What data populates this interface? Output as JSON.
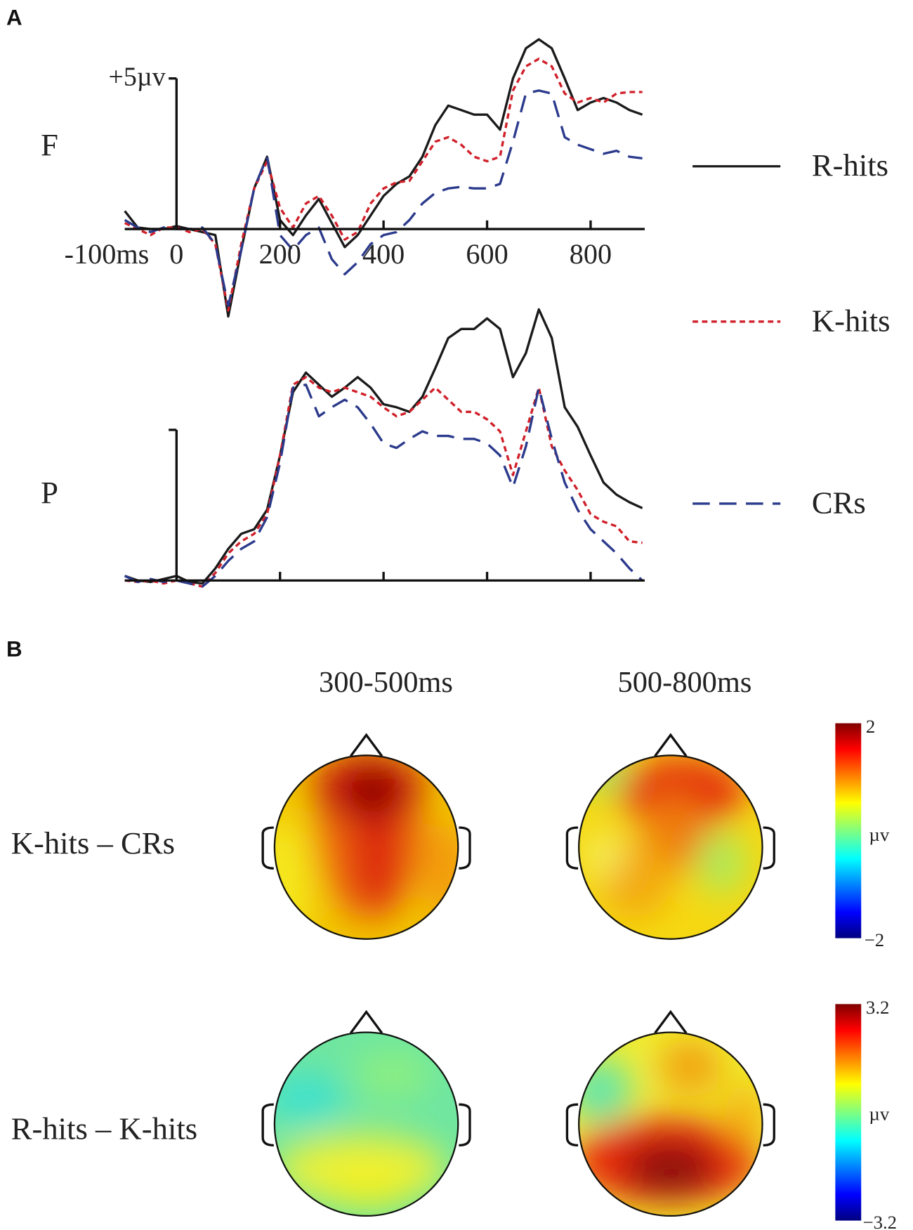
{
  "panel_labels": [
    "A",
    "B"
  ],
  "chart_data": [
    {
      "type": "line",
      "title": "F",
      "x": [
        -100,
        -75,
        -50,
        -25,
        0,
        25,
        50,
        75,
        100,
        125,
        150,
        175,
        200,
        225,
        250,
        275,
        300,
        325,
        350,
        375,
        400,
        425,
        450,
        475,
        500,
        525,
        550,
        575,
        600,
        625,
        650,
        675,
        700,
        725,
        750,
        775,
        800,
        825,
        850,
        875,
        900
      ],
      "xlim": [
        -100,
        900
      ],
      "xticks": [
        {
          "value": -100,
          "label": "-100ms"
        },
        0,
        200,
        400,
        600,
        800
      ],
      "ylim": [
        -4,
        7
      ],
      "yticks": [
        {
          "value": 5,
          "label": "+5µv"
        }
      ],
      "series": [
        {
          "name": "R-hits",
          "color": "#1a1a1a",
          "line_style": "solid",
          "values": [
            0.6,
            0.05,
            0,
            0,
            0.1,
            0,
            -0.1,
            -0.2,
            -2.9,
            -0.7,
            1.35,
            2.4,
            0.3,
            -0.2,
            0.45,
            1.0,
            0.2,
            -0.6,
            -0.2,
            0.45,
            1.1,
            1.5,
            1.75,
            2.4,
            3.45,
            4.1,
            3.95,
            3.8,
            3.8,
            3.3,
            5.0,
            6.0,
            6.3,
            6.0,
            5.0,
            3.95,
            4.2,
            4.35,
            4.2,
            3.95,
            3.8
          ]
        },
        {
          "name": "K-hits",
          "color": "#d0202a",
          "line_style": "dotted",
          "values": [
            0.2,
            0,
            -0.2,
            0.05,
            0.05,
            -0.1,
            0,
            -0.5,
            -2.7,
            -0.5,
            1.35,
            2.25,
            0.7,
            0.05,
            0.85,
            1.1,
            0.45,
            -0.35,
            -0.1,
            0.85,
            1.35,
            1.55,
            1.6,
            2.25,
            2.9,
            3.05,
            2.8,
            2.4,
            2.25,
            2.4,
            4.6,
            5.4,
            5.65,
            5.4,
            4.5,
            4.2,
            4.35,
            4.2,
            4.5,
            4.55,
            4.55
          ]
        },
        {
          "name": "CRs",
          "color": "#2b3a8c",
          "line_style": "dashed",
          "values": [
            0.3,
            0.05,
            -0.1,
            0.05,
            0,
            0,
            0.05,
            -0.5,
            -2.55,
            -0.7,
            1.35,
            2.4,
            -0.2,
            -0.7,
            -0.2,
            0.05,
            -1.0,
            -1.5,
            -1.1,
            -0.5,
            -0.2,
            -0.1,
            0.3,
            0.85,
            1.2,
            1.35,
            1.4,
            1.35,
            1.35,
            1.5,
            2.9,
            4.5,
            4.6,
            4.5,
            3.05,
            2.8,
            2.65,
            2.5,
            2.6,
            2.4,
            2.35
          ]
        }
      ]
    },
    {
      "type": "line",
      "title": "P",
      "x": [
        -100,
        -75,
        -50,
        -25,
        0,
        25,
        50,
        75,
        100,
        125,
        150,
        175,
        200,
        225,
        250,
        275,
        300,
        325,
        350,
        375,
        400,
        425,
        450,
        475,
        500,
        525,
        550,
        575,
        600,
        625,
        650,
        675,
        700,
        725,
        750,
        775,
        800,
        825,
        850,
        875,
        900
      ],
      "xlim": [
        -100,
        900
      ],
      "ylim": [
        -1,
        10
      ],
      "series": [
        {
          "color": "#1a1a1a",
          "line_style": "solid",
          "values": [
            0.15,
            0,
            -0.05,
            0.05,
            0.15,
            -0.05,
            -0.1,
            0.4,
            1.05,
            1.55,
            1.7,
            2.35,
            4.15,
            6.25,
            6.9,
            6.5,
            6.1,
            6.4,
            6.75,
            6.4,
            5.85,
            5.75,
            5.6,
            6.1,
            7.05,
            8.05,
            8.35,
            8.35,
            8.7,
            8.35,
            6.75,
            7.55,
            9.0,
            8.05,
            5.75,
            5.1,
            4.15,
            3.25,
            2.85,
            2.6,
            2.4
          ]
        },
        {
          "color": "#d0202a",
          "line_style": "dotted",
          "values": [
            0,
            -0.05,
            0,
            -0.1,
            0,
            -0.1,
            -0.2,
            0.25,
            0.9,
            1.3,
            1.55,
            2.2,
            4.15,
            6.5,
            6.75,
            6.4,
            6.25,
            6.4,
            6.25,
            6.1,
            5.75,
            5.45,
            5.6,
            6.0,
            6.4,
            6.0,
            5.6,
            5.6,
            5.35,
            4.95,
            3.5,
            4.95,
            6.4,
            4.45,
            3.65,
            3.0,
            2.2,
            1.95,
            1.8,
            1.3,
            1.25
          ]
        },
        {
          "color": "#2b3a8c",
          "line_style": "dashed",
          "values": [
            0.15,
            -0.05,
            0.05,
            -0.05,
            0,
            -0.1,
            -0.2,
            0.15,
            0.65,
            1.05,
            1.3,
            2.1,
            3.9,
            6.4,
            6.5,
            5.45,
            5.75,
            6.0,
            5.75,
            5.2,
            4.55,
            4.4,
            4.7,
            4.95,
            4.8,
            4.8,
            4.7,
            4.7,
            4.55,
            4.15,
            3.1,
            4.45,
            6.4,
            4.7,
            3.25,
            2.35,
            1.7,
            1.3,
            0.9,
            0.4,
            0
          ]
        }
      ]
    }
  ],
  "topomaps": {
    "columns": [
      "300-500ms",
      "500-800ms"
    ],
    "rows": [
      {
        "label": "K-hits – CRs",
        "colorbar": {
          "max": "2",
          "unit": "µv",
          "min": "−2"
        }
      },
      {
        "label": "R-hits – K-hits",
        "colorbar": {
          "max": "3.2",
          "unit": "µv",
          "min": "−3.2"
        }
      }
    ]
  }
}
